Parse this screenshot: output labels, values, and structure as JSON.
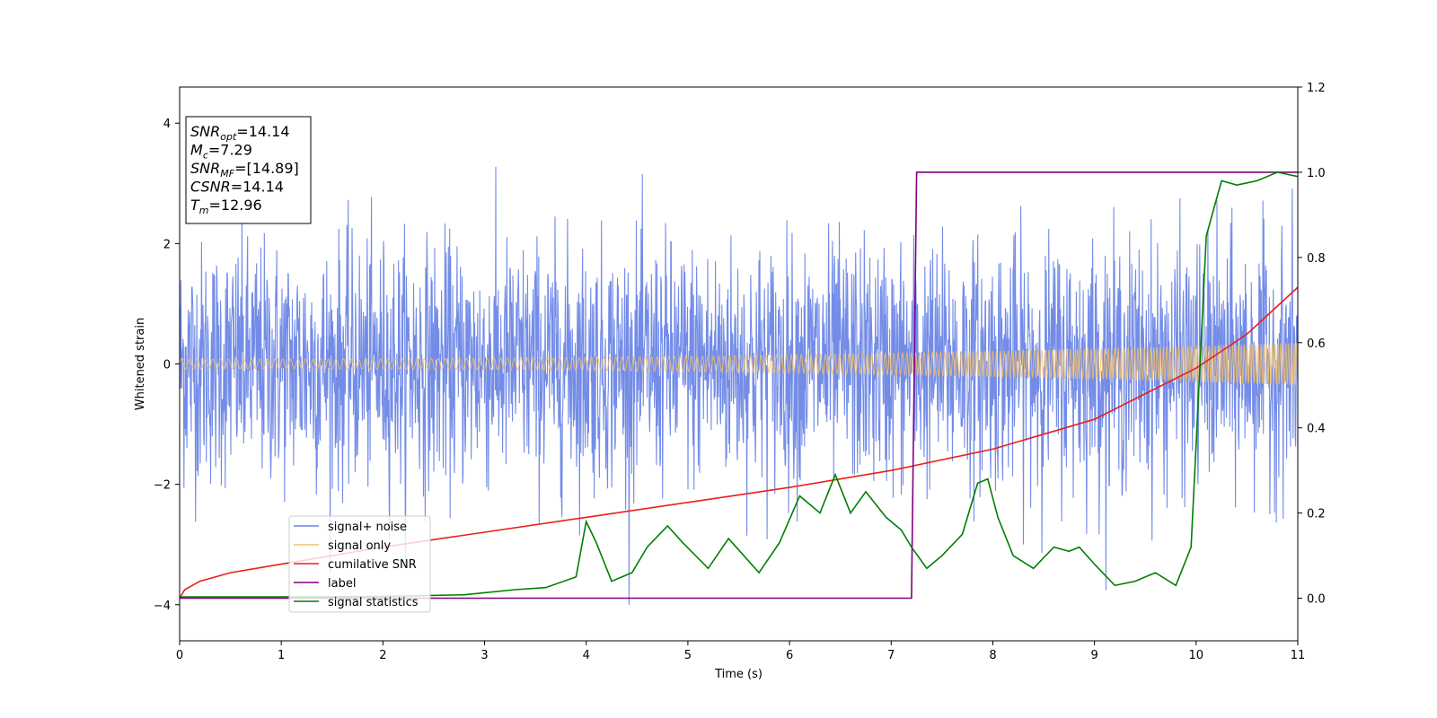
{
  "chart_data": {
    "type": "line",
    "xlabel": "Time (s)",
    "ylabel": "Whitened strain",
    "xlim": [
      0,
      11
    ],
    "ylim_left": [
      -4.6,
      4.6
    ],
    "ylim_right": [
      -0.1,
      1.2
    ],
    "x_ticks": [
      0,
      1,
      2,
      3,
      4,
      5,
      6,
      7,
      8,
      9,
      10,
      11
    ],
    "y_ticks_left": [
      -4,
      -2,
      0,
      2,
      4
    ],
    "y_ticks_right": [
      "0.0",
      "0.2",
      "0.4",
      "0.6",
      "0.8",
      "1.0",
      "1.2"
    ],
    "grid": false,
    "legend_position": "lower-left",
    "info_box": {
      "lines": [
        {
          "sym": "SNR",
          "sub": "opt",
          "val": "=14.14"
        },
        {
          "sym": "M",
          "sub": "c",
          "val": "=7.29"
        },
        {
          "sym": "SNR",
          "sub": "MF",
          "val": "=[14.89]"
        },
        {
          "sym": "CSNR",
          "sub": "",
          "val": "=14.14"
        },
        {
          "sym": "T",
          "sub": "m",
          "val": "=12.96"
        }
      ]
    },
    "series": [
      {
        "name": "signal+ noise",
        "axis": "left",
        "color": "#6b86e6",
        "description_values": {
          "amplitude_envelope": [
            -4.0,
            4.1
          ],
          "mean": 0
        }
      },
      {
        "name": "signal only",
        "axis": "left",
        "color": "#f5c06a",
        "description_values": {
          "amplitude_start": 0.08,
          "amplitude_end": 0.35
        }
      },
      {
        "name": "cumilative SNR",
        "axis": "right",
        "color": "#e8201a",
        "x": [
          0,
          0.05,
          0.2,
          0.5,
          1,
          2,
          3,
          4,
          5,
          6,
          7,
          8,
          9,
          10,
          10.5,
          11
        ],
        "y": [
          0.0,
          0.02,
          0.04,
          0.06,
          0.08,
          0.12,
          0.155,
          0.19,
          0.225,
          0.26,
          0.3,
          0.35,
          0.42,
          0.54,
          0.62,
          0.73
        ]
      },
      {
        "name": "label",
        "axis": "right",
        "color": "#800080",
        "x": [
          0,
          7.2,
          7.25,
          11
        ],
        "y": [
          0,
          0,
          1,
          1
        ]
      },
      {
        "name": "signal statistics",
        "axis": "right",
        "color": "#007f00",
        "x": [
          0,
          1,
          2,
          2.8,
          3.3,
          3.6,
          3.9,
          4.0,
          4.1,
          4.25,
          4.45,
          4.6,
          4.8,
          4.95,
          5.2,
          5.4,
          5.7,
          5.9,
          6.1,
          6.3,
          6.45,
          6.6,
          6.75,
          6.95,
          7.1,
          7.2,
          7.35,
          7.5,
          7.7,
          7.85,
          7.95,
          8.05,
          8.2,
          8.4,
          8.6,
          8.75,
          8.85,
          9.0,
          9.2,
          9.4,
          9.6,
          9.8,
          9.95,
          10.1,
          10.25,
          10.4,
          10.6,
          10.8,
          11.0
        ],
        "y": [
          0.003,
          0.003,
          0.004,
          0.008,
          0.02,
          0.025,
          0.05,
          0.18,
          0.13,
          0.04,
          0.06,
          0.12,
          0.17,
          0.13,
          0.07,
          0.14,
          0.06,
          0.13,
          0.24,
          0.2,
          0.29,
          0.2,
          0.25,
          0.19,
          0.16,
          0.12,
          0.07,
          0.1,
          0.15,
          0.27,
          0.28,
          0.19,
          0.1,
          0.07,
          0.12,
          0.11,
          0.12,
          0.08,
          0.03,
          0.04,
          0.06,
          0.03,
          0.12,
          0.85,
          0.98,
          0.97,
          0.98,
          1.0,
          0.99
        ]
      }
    ]
  }
}
